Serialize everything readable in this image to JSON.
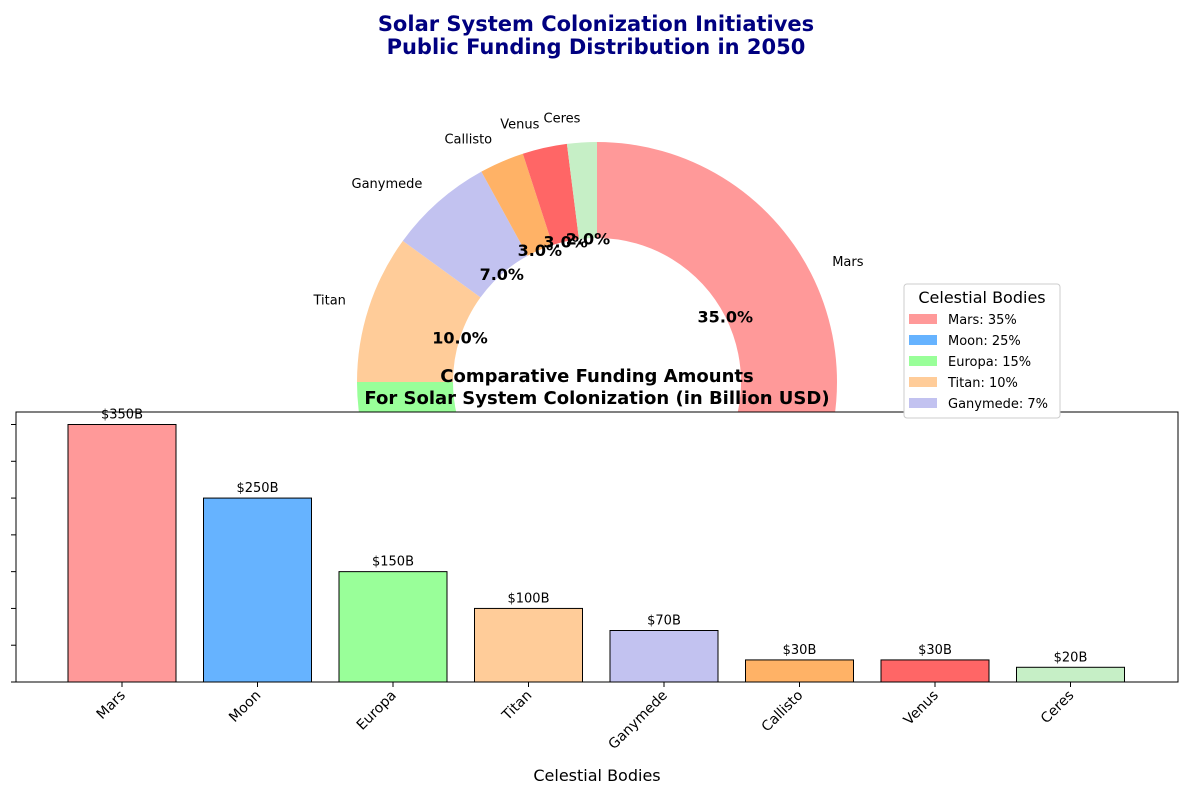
{
  "figure": {
    "title_line1": "Solar System Colonization Initiatives",
    "title_line2": "Public Funding Distribution in 2050",
    "title_color": "#000080"
  },
  "chart_data": [
    {
      "type": "pie",
      "style": "donut",
      "start_angle_deg": 90,
      "direction": "clockwise",
      "slices": [
        {
          "label": "Mars",
          "value": 35,
          "pct_label": "35.0%",
          "color": "#FF9999"
        },
        {
          "label": "Moon",
          "value": 25,
          "pct_label": "25.0%",
          "color": "#66B3FF"
        },
        {
          "label": "Europa",
          "value": 15,
          "pct_label": "15.0%",
          "color": "#99FF99"
        },
        {
          "label": "Titan",
          "value": 10,
          "pct_label": "10.0%",
          "color": "#FFCC99"
        },
        {
          "label": "Ganymede",
          "value": 7,
          "pct_label": "7.0%",
          "color": "#C2C2F0"
        },
        {
          "label": "Callisto",
          "value": 3,
          "pct_label": "3.0%",
          "color": "#FFB266"
        },
        {
          "label": "Venus",
          "value": 3,
          "pct_label": "3.0%",
          "color": "#FF6666"
        },
        {
          "label": "Ceres",
          "value": 2,
          "pct_label": "2.0%",
          "color": "#C6EFC6"
        }
      ],
      "legend": {
        "title": "Celestial Bodies",
        "placement": "right",
        "visible_entries": [
          "Mars: 35%",
          "Moon: 25%",
          "Europa: 15%",
          "Titan: 10%",
          "Ganymede: 7%"
        ]
      }
    },
    {
      "type": "bar",
      "title_line1": "Comparative Funding Amounts",
      "title_line2": "For Solar System Colonization (in Billion USD)",
      "categories": [
        "Mars",
        "Moon",
        "Europa",
        "Titan",
        "Ganymede",
        "Callisto",
        "Venus",
        "Ceres"
      ],
      "values": [
        350,
        250,
        150,
        100,
        70,
        30,
        30,
        20
      ],
      "data_labels": [
        "$350B",
        "$250B",
        "$150B",
        "$100B",
        "$70B",
        "$30B",
        "$30B",
        "$20B"
      ],
      "colors": [
        "#FF9999",
        "#66B3FF",
        "#99FF99",
        "#FFCC99",
        "#C2C2F0",
        "#FFB266",
        "#FF6666",
        "#C6EFC6"
      ],
      "xlabel": "Celestial Bodies",
      "ylabel": "",
      "ylim": [
        0,
        367
      ],
      "yticks": [
        0,
        50,
        100,
        150,
        200,
        250,
        300,
        350
      ],
      "grid": false
    }
  ]
}
